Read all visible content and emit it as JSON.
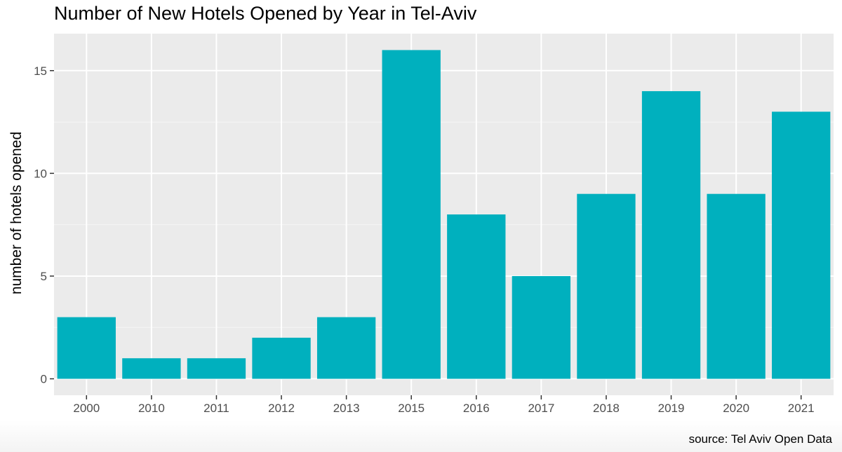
{
  "chart_data": {
    "type": "bar",
    "title": "Number of New Hotels Opened by Year in Tel-Aviv",
    "xlabel": "",
    "ylabel": "number of hotels opened",
    "caption": "source: Tel Aviv Open Data",
    "categories": [
      "2000",
      "2010",
      "2011",
      "2012",
      "2013",
      "2015",
      "2016",
      "2017",
      "2018",
      "2019",
      "2020",
      "2021"
    ],
    "values": [
      3,
      1,
      1,
      2,
      3,
      16,
      8,
      5,
      9,
      14,
      9,
      13
    ],
    "ylim": [
      -0.8,
      16.8
    ],
    "yticks": [
      0,
      5,
      10,
      15
    ],
    "grid": true,
    "legend": "none",
    "colors": {
      "bar": "#00b0be",
      "panel": "#ebebeb",
      "grid_major": "#ffffff",
      "grid_minor": "#f5f5f5",
      "tick_text": "#4d4d4d",
      "tick_mark": "#333333"
    }
  }
}
